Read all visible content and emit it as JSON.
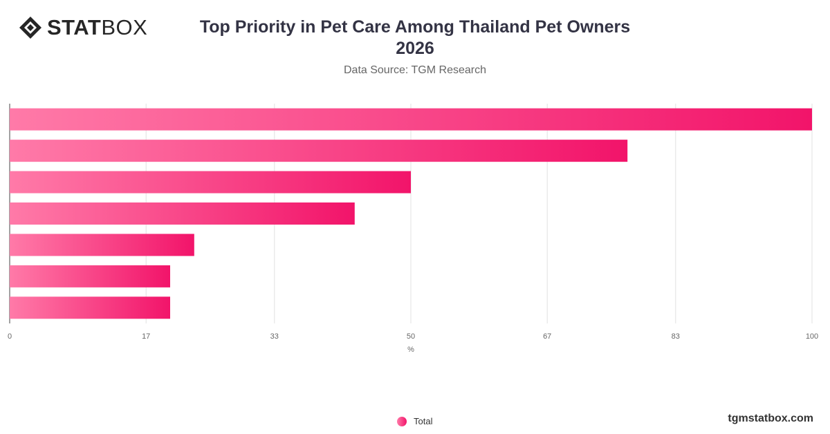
{
  "brand": {
    "logo_bold": "STAT",
    "logo_light": "BOX",
    "site": "tgmstatbox.com"
  },
  "header": {
    "title_line1": "Top Priority in Pet Care Among Thailand Pet Owners",
    "title_line2": "2026",
    "source": "Data Source: TGM Research"
  },
  "colors": {
    "bar_start": "#ff7aa8",
    "bar_end": "#f2146a",
    "grid": "#e0e0e0"
  },
  "chart_data": {
    "type": "bar",
    "orientation": "horizontal",
    "categories": [
      "",
      "",
      "",
      "",
      "",
      "",
      ""
    ],
    "series": [
      {
        "name": "Total",
        "values": [
          100,
          77,
          50,
          43,
          23,
          20,
          20
        ]
      }
    ],
    "xlim": [
      0,
      100
    ],
    "xticks": [
      "0",
      "17",
      "33",
      "50",
      "67",
      "83",
      "100"
    ],
    "xlabel": "%",
    "grid": true,
    "legend": "bottom-center"
  }
}
